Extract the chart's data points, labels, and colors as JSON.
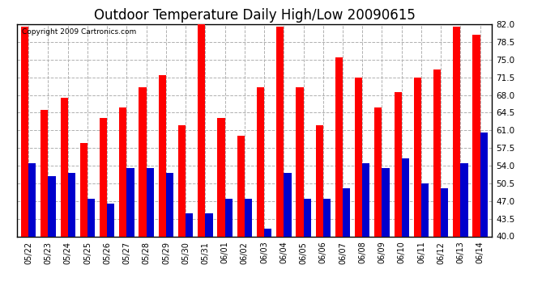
{
  "title": "Outdoor Temperature Daily High/Low 20090615",
  "copyright": "Copyright 2009 Cartronics.com",
  "dates": [
    "05/22",
    "05/23",
    "05/24",
    "05/25",
    "05/26",
    "05/27",
    "05/28",
    "05/29",
    "05/30",
    "05/31",
    "06/01",
    "06/02",
    "06/03",
    "06/04",
    "06/05",
    "06/06",
    "06/07",
    "06/08",
    "06/09",
    "06/10",
    "06/11",
    "06/12",
    "06/13",
    "06/14"
  ],
  "highs": [
    81.5,
    65.0,
    67.5,
    58.5,
    63.5,
    65.5,
    69.5,
    72.0,
    62.0,
    82.0,
    63.5,
    60.0,
    69.5,
    81.5,
    69.5,
    62.0,
    75.5,
    71.5,
    65.5,
    68.5,
    71.5,
    73.0,
    81.5,
    80.0
  ],
  "lows": [
    54.5,
    52.0,
    52.5,
    47.5,
    46.5,
    53.5,
    53.5,
    52.5,
    44.5,
    44.5,
    47.5,
    47.5,
    41.5,
    52.5,
    47.5,
    47.5,
    49.5,
    54.5,
    53.5,
    55.5,
    50.5,
    49.5,
    54.5,
    60.5
  ],
  "high_color": "#ff0000",
  "low_color": "#0000cc",
  "bg_color": "#ffffff",
  "plot_bg_color": "#ffffff",
  "grid_color": "#b0b0b0",
  "title_fontsize": 12,
  "ymin": 40.0,
  "ymax": 82.0,
  "yticks": [
    40.0,
    43.5,
    47.0,
    50.5,
    54.0,
    57.5,
    61.0,
    64.5,
    68.0,
    71.5,
    75.0,
    78.5,
    82.0
  ]
}
